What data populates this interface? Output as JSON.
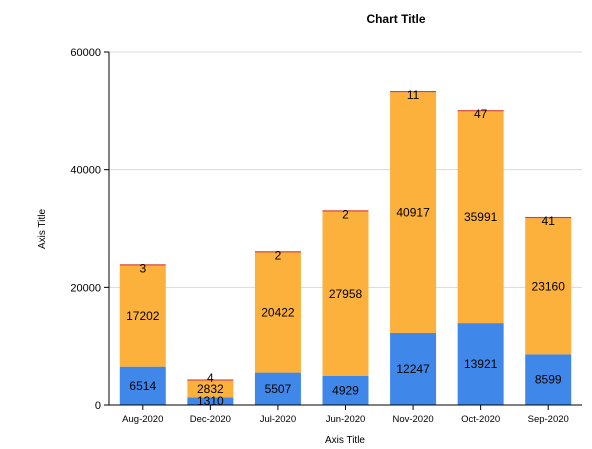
{
  "chart_data": {
    "type": "bar",
    "stacked": true,
    "title": "Chart Title",
    "xlabel": "Axis Title",
    "ylabel": "Axis Title",
    "ylim": [
      0,
      60000
    ],
    "yticks": [
      0,
      20000,
      40000,
      60000
    ],
    "grid": true,
    "categories": [
      "Aug-2020",
      "Dec-2020",
      "Jul-2020",
      "Jun-2020",
      "Nov-2020",
      "Oct-2020",
      "Sep-2020"
    ],
    "series": [
      {
        "values": [
          6514,
          1310,
          5507,
          4929,
          12247,
          13921,
          8599
        ],
        "color": "#3f87e8"
      },
      {
        "values": [
          17202,
          2832,
          20422,
          27958,
          40917,
          35991,
          23160
        ],
        "color": "#fbb13c"
      },
      {
        "values": [
          3,
          4,
          2,
          2,
          11,
          47,
          41
        ],
        "color": "#d9402a"
      }
    ]
  }
}
